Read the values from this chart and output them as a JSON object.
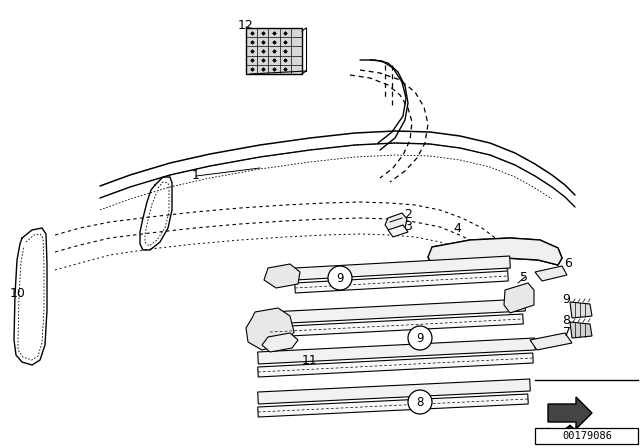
{
  "bg_color": "#ffffff",
  "line_color": "#000000",
  "diagram_id": "00179086",
  "fig_width": 6.4,
  "fig_height": 4.48,
  "dpi": 100
}
